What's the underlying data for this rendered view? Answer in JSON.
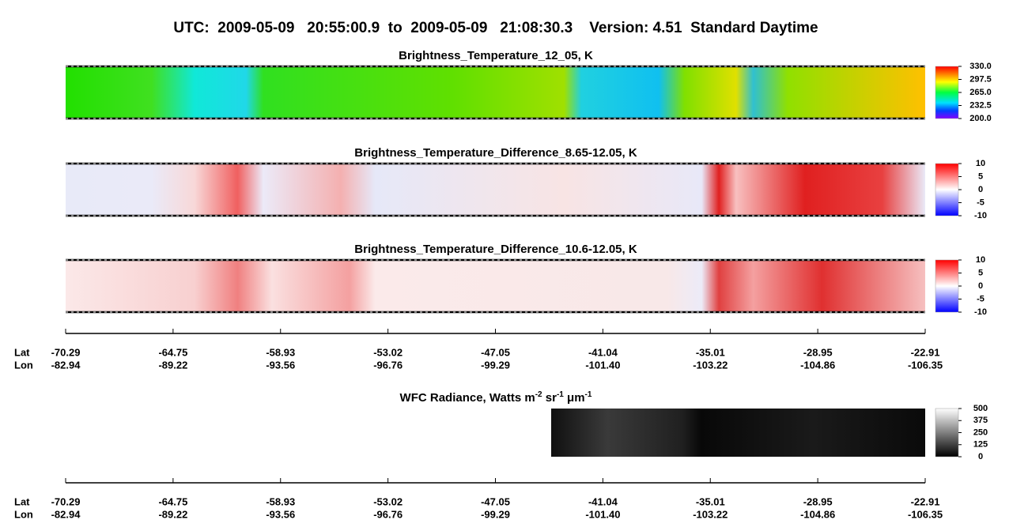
{
  "title": "UTC:  2009-05-09   20:55:00.9  to  2009-05-09   21:08:30.3    Version: 4.51  Standard Daytime",
  "panels": [
    {
      "title": "Brightness_Temperature_12_05, K",
      "colorbar_ticks": [
        {
          "value": 200,
          "label": "200.0"
        },
        {
          "value": 232.5,
          "label": "232.5"
        },
        {
          "value": 265,
          "label": "265.0"
        },
        {
          "value": 297.5,
          "label": "297.5"
        },
        {
          "value": 330,
          "label": "330.0"
        }
      ]
    },
    {
      "title": "Brightness_Temperature_Difference_8.65-12.05, K",
      "colorbar_ticks": [
        -10,
        -5,
        0,
        5,
        10
      ]
    },
    {
      "title": "Brightness_Temperature_Difference_10.6-12.05, K",
      "colorbar_ticks": [
        -10,
        -5,
        0,
        5,
        10
      ]
    }
  ],
  "wfc": {
    "title_parts": [
      {
        "text": "WFC Radiance, Watts m",
        "sup": "-2"
      },
      {
        "text": " sr",
        "sup": "-1"
      },
      {
        "text": " μm",
        "sup": "-1"
      }
    ],
    "colorbar_ticks": [
      0,
      125,
      250,
      375,
      500
    ]
  },
  "axes": {
    "lat_label": "Lat",
    "lon_label": "Lon",
    "lat": [
      -70.29,
      -64.75,
      -58.93,
      -53.02,
      -47.05,
      -41.04,
      -35.01,
      -28.95,
      -22.91
    ],
    "lon": [
      -82.94,
      -89.22,
      -93.56,
      -96.76,
      -99.29,
      {
        "value": -101.4,
        "label": "-101.40"
      },
      -103.22,
      -104.86,
      -106.35
    ]
  }
}
